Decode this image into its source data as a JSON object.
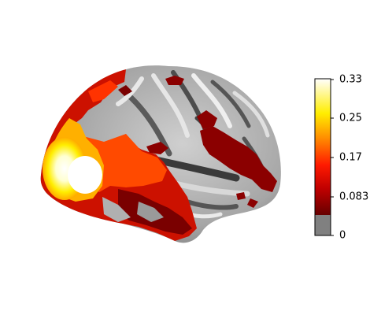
{
  "figure": {
    "image": "brain-surface-lateral-view",
    "colormap": {
      "name": "hot",
      "min": 0,
      "max": 0.33,
      "threshold": 0.045,
      "below_threshold_color": "#808080",
      "stops": [
        "#000000",
        "#8b0000",
        "#ff0000",
        "#ff8c00",
        "#ffff00",
        "#ffffff"
      ]
    },
    "colorbar": {
      "ticks": [
        "0",
        "0.083",
        "0.17",
        "0.25",
        "0.33"
      ]
    }
  }
}
